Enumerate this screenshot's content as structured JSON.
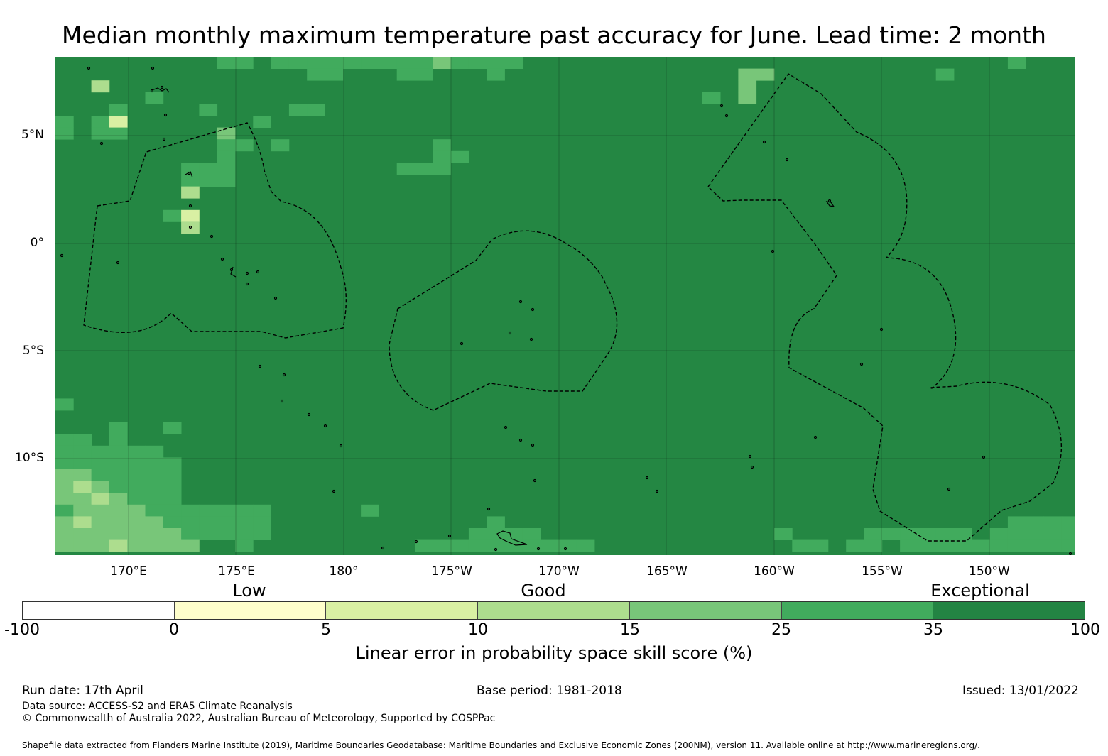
{
  "title": "Median monthly maximum temperature past accuracy for June. Lead time: 2 month",
  "latitude_labels": [
    "5°N",
    "0°",
    "5°S",
    "10°S"
  ],
  "longitude_labels": [
    "170°E",
    "175°E",
    "180°",
    "175°W",
    "170°W",
    "165°W",
    "160°W",
    "155°W",
    "150°W"
  ],
  "category_labels": [
    "Low",
    "Good",
    "Exceptional"
  ],
  "colorbar": {
    "ticks": [
      "-100",
      "0",
      "5",
      "10",
      "15",
      "25",
      "35",
      "100"
    ],
    "colors": [
      "#ffffff",
      "#ffffcc",
      "#d9f0a3",
      "#addd8e",
      "#78c679",
      "#41ab5d",
      "#238443"
    ],
    "title": "Linear error in probability space skill score (%)"
  },
  "map": {
    "background_class_color": "#248743",
    "dominant_category": "35 to 100",
    "lower_skill_region": "south-west corner (lighter greens 10-25%)"
  },
  "footer": {
    "run_date": "Run date: 17th April",
    "base_period": "Base period: 1981-2018",
    "issued": "Issued: 13/01/2022",
    "data_source": "Data source: ACCESS-S2 and ERA5 Climate Reanalysis",
    "copyright": "© Commonwealth of Australia 2022, Australian Bureau of Meteorology, Supported by COSPPac",
    "shapefile": "Shapefile data extracted from Flanders Marine Institute (2019), Maritime Boundaries Geodatabase: Maritime Boundaries and Exclusive Economic Zones (200NM), version 11. Available online at http://www.marineregions.org/."
  }
}
